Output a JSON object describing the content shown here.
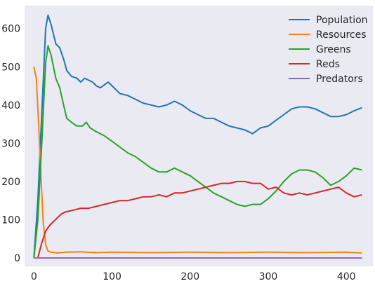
{
  "chart_data": {
    "type": "line",
    "title": "",
    "xlabel": "",
    "ylabel": "",
    "xlim": [
      -12,
      434
    ],
    "ylim": [
      -22,
      660
    ],
    "xticks": [
      0,
      100,
      200,
      300,
      400
    ],
    "yticks": [
      0,
      100,
      200,
      300,
      400,
      500,
      600
    ],
    "grid": false,
    "background": "#eaeaf2",
    "legend_position": "top-right",
    "series": [
      {
        "name": "Population",
        "color": "#1f77b4",
        "points": [
          [
            0,
            0
          ],
          [
            5,
            150
          ],
          [
            10,
            380
          ],
          [
            15,
            600
          ],
          [
            18,
            635
          ],
          [
            22,
            610
          ],
          [
            28,
            560
          ],
          [
            33,
            550
          ],
          [
            38,
            520
          ],
          [
            42,
            490
          ],
          [
            48,
            475
          ],
          [
            55,
            470
          ],
          [
            60,
            460
          ],
          [
            65,
            470
          ],
          [
            70,
            465
          ],
          [
            75,
            460
          ],
          [
            80,
            450
          ],
          [
            85,
            445
          ],
          [
            95,
            460
          ],
          [
            100,
            450
          ],
          [
            110,
            430
          ],
          [
            120,
            425
          ],
          [
            130,
            415
          ],
          [
            140,
            405
          ],
          [
            150,
            400
          ],
          [
            160,
            395
          ],
          [
            170,
            400
          ],
          [
            180,
            410
          ],
          [
            190,
            400
          ],
          [
            200,
            385
          ],
          [
            210,
            375
          ],
          [
            220,
            365
          ],
          [
            230,
            365
          ],
          [
            240,
            355
          ],
          [
            250,
            345
          ],
          [
            260,
            340
          ],
          [
            270,
            335
          ],
          [
            280,
            325
          ],
          [
            290,
            340
          ],
          [
            300,
            345
          ],
          [
            310,
            360
          ],
          [
            320,
            375
          ],
          [
            330,
            390
          ],
          [
            340,
            395
          ],
          [
            350,
            395
          ],
          [
            360,
            390
          ],
          [
            370,
            380
          ],
          [
            380,
            370
          ],
          [
            390,
            370
          ],
          [
            400,
            375
          ],
          [
            410,
            385
          ],
          [
            420,
            393
          ]
        ]
      },
      {
        "name": "Resources",
        "color": "#ff7f0e",
        "points": [
          [
            0,
            500
          ],
          [
            3,
            470
          ],
          [
            6,
            350
          ],
          [
            9,
            210
          ],
          [
            12,
            90
          ],
          [
            15,
            35
          ],
          [
            18,
            18
          ],
          [
            22,
            15
          ],
          [
            30,
            13
          ],
          [
            40,
            15
          ],
          [
            60,
            16
          ],
          [
            80,
            14
          ],
          [
            100,
            15
          ],
          [
            150,
            14
          ],
          [
            200,
            15
          ],
          [
            250,
            14
          ],
          [
            300,
            15
          ],
          [
            350,
            14
          ],
          [
            400,
            15
          ],
          [
            420,
            13
          ]
        ]
      },
      {
        "name": "Greens",
        "color": "#2ca02c",
        "points": [
          [
            0,
            0
          ],
          [
            5,
            100
          ],
          [
            10,
            300
          ],
          [
            15,
            510
          ],
          [
            18,
            555
          ],
          [
            22,
            530
          ],
          [
            28,
            470
          ],
          [
            33,
            445
          ],
          [
            38,
            400
          ],
          [
            42,
            365
          ],
          [
            48,
            355
          ],
          [
            55,
            345
          ],
          [
            62,
            345
          ],
          [
            67,
            355
          ],
          [
            72,
            340
          ],
          [
            80,
            330
          ],
          [
            90,
            320
          ],
          [
            100,
            305
          ],
          [
            110,
            290
          ],
          [
            120,
            275
          ],
          [
            130,
            265
          ],
          [
            140,
            250
          ],
          [
            150,
            235
          ],
          [
            160,
            225
          ],
          [
            170,
            225
          ],
          [
            180,
            235
          ],
          [
            190,
            225
          ],
          [
            200,
            215
          ],
          [
            210,
            200
          ],
          [
            220,
            185
          ],
          [
            230,
            170
          ],
          [
            240,
            160
          ],
          [
            250,
            150
          ],
          [
            260,
            140
          ],
          [
            270,
            135
          ],
          [
            280,
            140
          ],
          [
            290,
            140
          ],
          [
            300,
            155
          ],
          [
            310,
            175
          ],
          [
            320,
            200
          ],
          [
            330,
            220
          ],
          [
            340,
            230
          ],
          [
            350,
            230
          ],
          [
            360,
            225
          ],
          [
            370,
            210
          ],
          [
            380,
            190
          ],
          [
            390,
            200
          ],
          [
            400,
            215
          ],
          [
            410,
            235
          ],
          [
            420,
            230
          ]
        ]
      },
      {
        "name": "Reds",
        "color": "#d62728",
        "points": [
          [
            0,
            0
          ],
          [
            5,
            0
          ],
          [
            10,
            40
          ],
          [
            15,
            70
          ],
          [
            20,
            85
          ],
          [
            25,
            95
          ],
          [
            30,
            105
          ],
          [
            35,
            115
          ],
          [
            40,
            120
          ],
          [
            50,
            125
          ],
          [
            60,
            130
          ],
          [
            70,
            130
          ],
          [
            80,
            135
          ],
          [
            90,
            140
          ],
          [
            100,
            145
          ],
          [
            110,
            150
          ],
          [
            120,
            150
          ],
          [
            130,
            155
          ],
          [
            140,
            160
          ],
          [
            150,
            160
          ],
          [
            160,
            165
          ],
          [
            170,
            160
          ],
          [
            180,
            170
          ],
          [
            190,
            170
          ],
          [
            200,
            175
          ],
          [
            210,
            180
          ],
          [
            220,
            185
          ],
          [
            230,
            190
          ],
          [
            240,
            195
          ],
          [
            250,
            195
          ],
          [
            260,
            200
          ],
          [
            270,
            200
          ],
          [
            280,
            195
          ],
          [
            290,
            195
          ],
          [
            300,
            180
          ],
          [
            310,
            185
          ],
          [
            320,
            170
          ],
          [
            330,
            165
          ],
          [
            340,
            170
          ],
          [
            350,
            165
          ],
          [
            360,
            170
          ],
          [
            370,
            175
          ],
          [
            380,
            180
          ],
          [
            390,
            185
          ],
          [
            400,
            170
          ],
          [
            410,
            160
          ],
          [
            420,
            165
          ]
        ]
      },
      {
        "name": "Predators",
        "color": "#9467bd",
        "points": [
          [
            0,
            0
          ],
          [
            50,
            0
          ],
          [
            100,
            0
          ],
          [
            150,
            0
          ],
          [
            200,
            0
          ],
          [
            250,
            0
          ],
          [
            300,
            0
          ],
          [
            350,
            0
          ],
          [
            400,
            0
          ],
          [
            420,
            0
          ]
        ]
      }
    ]
  }
}
